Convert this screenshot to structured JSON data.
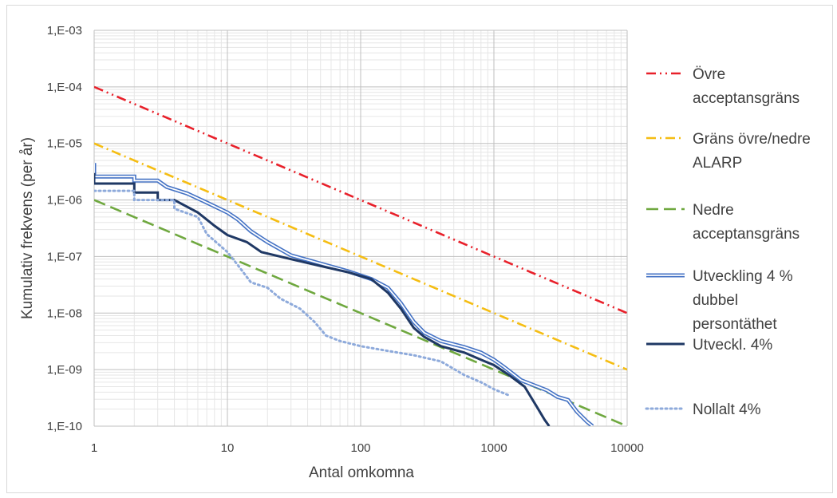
{
  "chart_data": {
    "type": "line",
    "x_scale": "log",
    "y_scale": "log",
    "xlim": [
      1,
      10000
    ],
    "ylim": [
      1e-10,
      0.001
    ],
    "xlabel": "Antal omkomna",
    "ylabel": "Kumulativ frekvens (per år)",
    "x_ticks": [
      "1",
      "10",
      "100",
      "1000",
      "10000"
    ],
    "y_ticks": [
      "1,E-10",
      "1,E-09",
      "1,E-08",
      "1,E-07",
      "1,E-06",
      "1,E-05",
      "1,E-04",
      "1,E-03"
    ],
    "grid": true,
    "legend_position": "right",
    "series": [
      {
        "name": "Övre acceptansgräns",
        "legend_lines": [
          "Övre",
          "acceptansgräns"
        ],
        "color": "#e8202a",
        "style": "dash-dot-dot",
        "points": [
          [
            1,
            0.0001
          ],
          [
            10000,
            1e-08
          ]
        ]
      },
      {
        "name": "Gräns övre/nedre ALARP",
        "legend_lines": [
          "Gräns övre/nedre",
          "ALARP"
        ],
        "color": "#f5bd12",
        "style": "dash-dot",
        "points": [
          [
            1,
            1e-05
          ],
          [
            10000,
            1e-09
          ]
        ]
      },
      {
        "name": "Nedre acceptansgräns",
        "legend_lines": [
          "Nedre",
          "acceptansgräns"
        ],
        "color": "#6fa83f",
        "style": "dash",
        "points": [
          [
            1,
            1e-06
          ],
          [
            10000,
            1e-10
          ]
        ]
      },
      {
        "name": "Utveckling 4 % dubbel persontäthet",
        "legend_lines": [
          "Utveckling 4 %",
          "dubbel",
          "persontäthet"
        ],
        "color": "#4472c4",
        "style": "double",
        "points": [
          [
            1,
            4.5e-06
          ],
          [
            1,
            2.6e-06
          ],
          [
            2,
            2.6e-06
          ],
          [
            2,
            2.2e-06
          ],
          [
            3,
            2.2e-06
          ],
          [
            3.5,
            1.7e-06
          ],
          [
            5,
            1.3e-06
          ],
          [
            7,
            9e-07
          ],
          [
            10,
            6e-07
          ],
          [
            12,
            4.5e-07
          ],
          [
            15,
            2.8e-07
          ],
          [
            20,
            1.8e-07
          ],
          [
            30,
            1.05e-07
          ],
          [
            50,
            7.5e-08
          ],
          [
            80,
            5.5e-08
          ],
          [
            120,
            4e-08
          ],
          [
            160,
            2.8e-08
          ],
          [
            200,
            1.5e-08
          ],
          [
            250,
            7e-09
          ],
          [
            300,
            4.5e-09
          ],
          [
            400,
            3.2e-09
          ],
          [
            600,
            2.5e-09
          ],
          [
            800,
            2e-09
          ],
          [
            1000,
            1.5e-09
          ],
          [
            1200,
            1.1e-09
          ],
          [
            1600,
            6.5e-10
          ],
          [
            2500,
            4.3e-10
          ],
          [
            3000,
            3.3e-10
          ],
          [
            3600,
            2.9e-10
          ],
          [
            4200,
            1.8e-10
          ],
          [
            5000,
            1.2e-10
          ],
          [
            5500,
            1e-10
          ]
        ]
      },
      {
        "name": "Utveckl. 4%",
        "legend_lines": [
          "Utveckl. 4%"
        ],
        "color": "#1f3864",
        "style": "solid",
        "points": [
          [
            1,
            3e-06
          ],
          [
            1,
            1.95e-06
          ],
          [
            2,
            1.95e-06
          ],
          [
            2,
            1.35e-06
          ],
          [
            3,
            1.35e-06
          ],
          [
            3,
            1e-06
          ],
          [
            4,
            1e-06
          ],
          [
            6,
            6e-07
          ],
          [
            8,
            3.5e-07
          ],
          [
            10,
            2.4e-07
          ],
          [
            14,
            1.8e-07
          ],
          [
            18,
            1.2e-07
          ],
          [
            30,
            9e-08
          ],
          [
            50,
            6.8e-08
          ],
          [
            80,
            5.3e-08
          ],
          [
            120,
            4e-08
          ],
          [
            160,
            2.3e-08
          ],
          [
            200,
            1.2e-08
          ],
          [
            250,
            5.5e-09
          ],
          [
            300,
            3.8e-09
          ],
          [
            400,
            2.6e-09
          ],
          [
            600,
            2e-09
          ],
          [
            800,
            1.5e-09
          ],
          [
            1000,
            1.2e-09
          ],
          [
            1300,
            8e-10
          ],
          [
            1700,
            5e-10
          ],
          [
            2100,
            2.2e-10
          ],
          [
            2400,
            1.3e-10
          ],
          [
            2600,
            1e-10
          ]
        ]
      },
      {
        "name": "Nollalt 4%",
        "legend_lines": [
          "Nollalt 4%"
        ],
        "color": "#8eaadb",
        "style": "dotted",
        "points": [
          [
            1,
            1.45e-06
          ],
          [
            2,
            1.45e-06
          ],
          [
            2,
            1e-06
          ],
          [
            4,
            1e-06
          ],
          [
            4,
            7e-07
          ],
          [
            6,
            5e-07
          ],
          [
            7,
            2.5e-07
          ],
          [
            10,
            1.2e-07
          ],
          [
            12,
            7e-08
          ],
          [
            15,
            3.5e-08
          ],
          [
            20,
            2.8e-08
          ],
          [
            25,
            1.8e-08
          ],
          [
            35,
            1.2e-08
          ],
          [
            45,
            7e-09
          ],
          [
            55,
            4e-09
          ],
          [
            70,
            3.2e-09
          ],
          [
            100,
            2.6e-09
          ],
          [
            150,
            2.2e-09
          ],
          [
            250,
            1.8e-09
          ],
          [
            400,
            1.4e-09
          ],
          [
            600,
            8e-10
          ],
          [
            800,
            6e-10
          ],
          [
            1000,
            4.5e-10
          ],
          [
            1300,
            3.5e-10
          ]
        ]
      }
    ]
  }
}
